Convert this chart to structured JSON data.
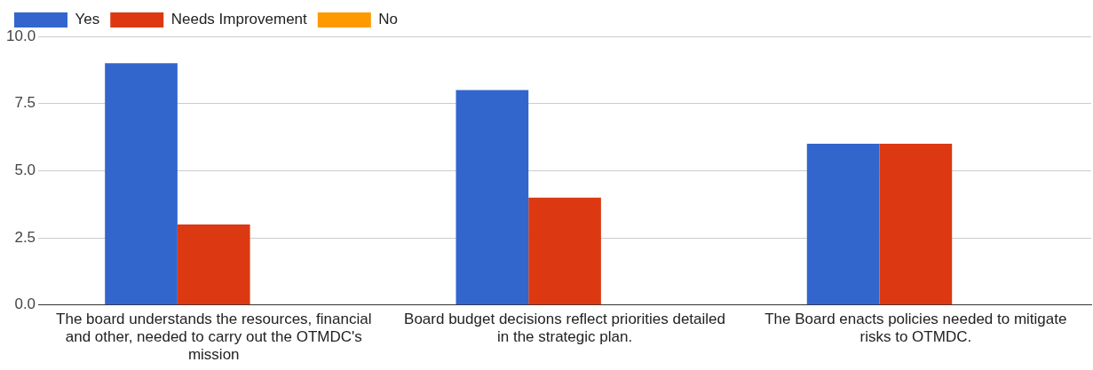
{
  "chart_data": {
    "type": "bar",
    "categories": [
      "The board understands the resources, financial and other, needed to carry out the OTMDC's mission",
      "Board budget decisions reflect priorities detailed in the strategic plan.",
      "The Board enacts policies needed to mitigate risks to OTMDC."
    ],
    "series": [
      {
        "name": "Yes",
        "color": "#3366cc",
        "values": [
          9,
          8,
          6
        ]
      },
      {
        "name": "Needs Improvement",
        "color": "#dc3912",
        "values": [
          3,
          4,
          6
        ]
      },
      {
        "name": "No",
        "color": "#ff9900",
        "values": [
          0,
          0,
          0
        ]
      }
    ],
    "ylim": [
      0,
      10
    ],
    "yticks": [
      {
        "value": 0,
        "label": "0.0"
      },
      {
        "value": 2.5,
        "label": "2.5"
      },
      {
        "value": 5,
        "label": "5.0"
      },
      {
        "value": 7.5,
        "label": "7.5"
      },
      {
        "value": 10,
        "label": "10.0"
      }
    ],
    "grid": "y",
    "legend": "top left"
  }
}
